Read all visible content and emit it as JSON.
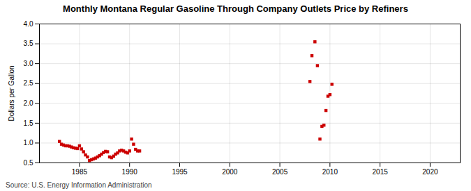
{
  "chart_data": {
    "type": "scatter",
    "title": "Monthly Montana Regular Gasoline Through Company Outlets Price by Refiners",
    "ylabel": "Dollars per Gallon",
    "source": "Source: U.S. Energy Information Administration",
    "x": [
      1983.0,
      1983.2,
      1983.4,
      1983.6,
      1983.8,
      1984.0,
      1984.2,
      1984.4,
      1984.6,
      1984.8,
      1985.0,
      1985.2,
      1985.4,
      1985.6,
      1985.8,
      1986.0,
      1986.2,
      1986.4,
      1986.6,
      1986.8,
      1987.0,
      1987.2,
      1987.4,
      1987.6,
      1987.8,
      1988.0,
      1988.2,
      1988.4,
      1988.6,
      1988.8,
      1989.0,
      1989.2,
      1989.4,
      1989.6,
      1989.8,
      1990.0,
      1990.2,
      1990.4,
      1990.6,
      1990.8,
      1991.0,
      2008.0,
      2008.2,
      2008.5,
      2008.75,
      2009.0,
      2009.2,
      2009.4,
      2009.6,
      2009.8,
      2010.0,
      2010.2
    ],
    "values": [
      1.04,
      0.97,
      0.95,
      0.93,
      0.93,
      0.92,
      0.9,
      0.88,
      0.87,
      0.86,
      0.93,
      0.85,
      0.78,
      0.7,
      0.65,
      0.56,
      0.58,
      0.6,
      0.62,
      0.65,
      0.68,
      0.72,
      0.76,
      0.79,
      0.78,
      0.65,
      0.63,
      0.67,
      0.72,
      0.75,
      0.8,
      0.82,
      0.8,
      0.77,
      0.75,
      0.8,
      1.1,
      0.97,
      0.84,
      0.8,
      0.8,
      2.55,
      3.2,
      3.55,
      2.95,
      1.1,
      1.42,
      1.45,
      1.82,
      2.18,
      2.22,
      2.48
    ],
    "color": "#cc0000",
    "marker": "square",
    "xlim": [
      1981,
      2023
    ],
    "ylim": [
      0.5,
      4.0
    ],
    "xticks": [
      1985,
      1990,
      1995,
      2000,
      2005,
      2010,
      2015,
      2020
    ],
    "yticks": [
      0.5,
      {
        "value": 1.0,
        "label": "1.0"
      },
      1.5,
      {
        "value": 2.0,
        "label": "2.0"
      },
      2.5,
      {
        "value": 3.0,
        "label": "3.0"
      },
      3.5,
      {
        "value": 4.0,
        "label": "4.0"
      }
    ],
    "grid": true
  }
}
